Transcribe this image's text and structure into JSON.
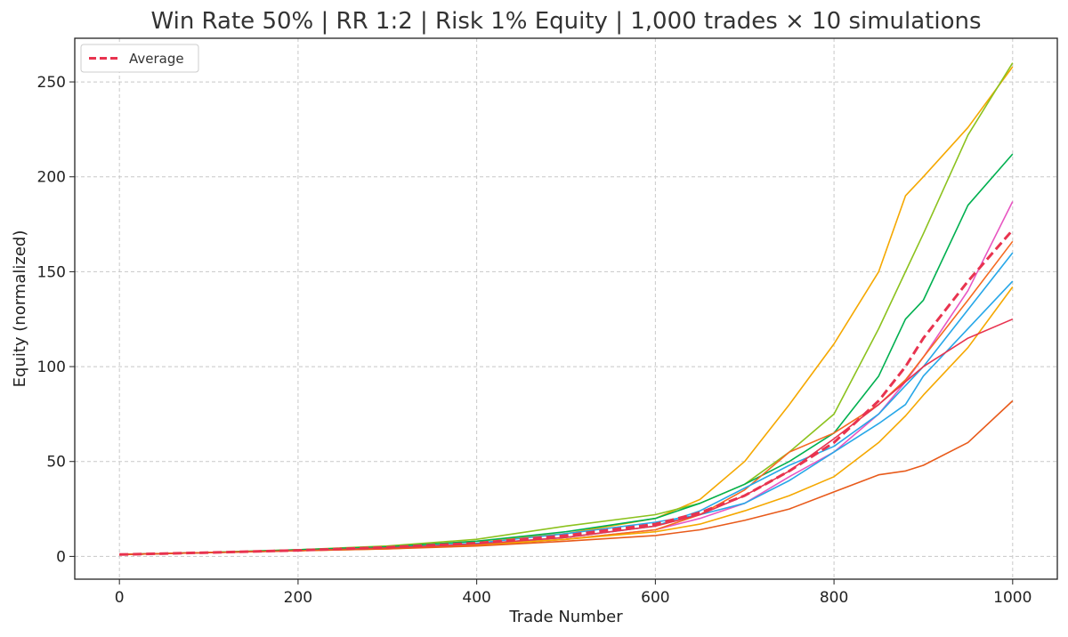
{
  "chart_data": {
    "type": "line",
    "title": "Win Rate 50% | RR 1:2 | Risk 1% Equity | 1,000 trades × 10 simulations",
    "xlabel": "Trade Number",
    "ylabel": "Equity (normalized)",
    "xlim": [
      -50,
      1050
    ],
    "ylim": [
      -12,
      273
    ],
    "xticks": [
      0,
      200,
      400,
      600,
      800,
      1000
    ],
    "yticks": [
      0,
      50,
      100,
      150,
      200,
      250
    ],
    "grid": true,
    "legend_position": "top-left",
    "legend": [
      {
        "label": "Average",
        "color": "#e8334f",
        "style": "dashed"
      }
    ],
    "series": [
      {
        "color": "#f5a800",
        "x": [
          0,
          100,
          200,
          300,
          400,
          500,
          600,
          650,
          700,
          750,
          800,
          850,
          880,
          900,
          950,
          1000
        ],
        "y": [
          1,
          2,
          3.5,
          5,
          8,
          12,
          20,
          30,
          50,
          80,
          112,
          150,
          190,
          200,
          226,
          258
        ]
      },
      {
        "color": "#8cc21e",
        "x": [
          0,
          100,
          200,
          300,
          400,
          500,
          600,
          650,
          700,
          750,
          800,
          850,
          880,
          900,
          950,
          1000
        ],
        "y": [
          1,
          2,
          3.5,
          5.5,
          9,
          16,
          22,
          28,
          38,
          55,
          75,
          120,
          150,
          170,
          222,
          260
        ]
      },
      {
        "color": "#00b050",
        "x": [
          0,
          100,
          200,
          300,
          400,
          500,
          600,
          650,
          700,
          750,
          800,
          850,
          880,
          900,
          950,
          1000
        ],
        "y": [
          1,
          2,
          3.5,
          5,
          8,
          13,
          20,
          28,
          38,
          50,
          65,
          95,
          125,
          135,
          185,
          212
        ]
      },
      {
        "color": "#e856c2",
        "x": [
          0,
          100,
          200,
          300,
          400,
          500,
          600,
          650,
          700,
          750,
          800,
          850,
          880,
          900,
          950,
          1000
        ],
        "y": [
          1,
          2,
          3,
          4.5,
          6,
          9,
          14,
          20,
          28,
          42,
          55,
          75,
          92,
          105,
          140,
          187
        ]
      },
      {
        "color": "#f56a20",
        "x": [
          0,
          100,
          200,
          300,
          400,
          500,
          600,
          650,
          700,
          750,
          800,
          850,
          880,
          900,
          950,
          1000
        ],
        "y": [
          1,
          2,
          3,
          4.5,
          6,
          9,
          14,
          22,
          35,
          55,
          65,
          80,
          93,
          105,
          135,
          166
        ]
      },
      {
        "color": "#27a7e8",
        "x": [
          0,
          100,
          200,
          300,
          400,
          500,
          600,
          650,
          700,
          750,
          800,
          850,
          880,
          900,
          950,
          1000
        ],
        "y": [
          1,
          2,
          3,
          4.5,
          6.5,
          10,
          16,
          24,
          36,
          48,
          58,
          75,
          90,
          100,
          130,
          160
        ]
      },
      {
        "color": "#27a7e8",
        "x": [
          0,
          100,
          200,
          300,
          400,
          500,
          600,
          650,
          700,
          750,
          800,
          850,
          880,
          900,
          950,
          1000
        ],
        "y": [
          1,
          2,
          3,
          4.5,
          7,
          12,
          18,
          22,
          28,
          40,
          55,
          70,
          80,
          95,
          120,
          145
        ]
      },
      {
        "color": "#f5a800",
        "x": [
          0,
          100,
          200,
          300,
          400,
          500,
          600,
          650,
          700,
          750,
          800,
          850,
          880,
          900,
          950,
          1000
        ],
        "y": [
          1,
          2,
          3,
          4,
          6,
          9,
          13,
          17,
          24,
          32,
          42,
          60,
          74,
          85,
          110,
          142
        ]
      },
      {
        "color": "#e8334f",
        "x": [
          0,
          100,
          200,
          300,
          400,
          500,
          600,
          650,
          700,
          750,
          800,
          850,
          880,
          900,
          950,
          1000
        ],
        "y": [
          1,
          2,
          3,
          4.5,
          6.5,
          10,
          16,
          22,
          32,
          45,
          62,
          80,
          92,
          100,
          115,
          125
        ]
      },
      {
        "color": "#e85a1a",
        "x": [
          0,
          100,
          200,
          300,
          400,
          500,
          600,
          650,
          700,
          750,
          800,
          850,
          880,
          900,
          950,
          1000
        ],
        "y": [
          1,
          2,
          3,
          4,
          5.5,
          8,
          11,
          14,
          19,
          25,
          34,
          43,
          45,
          48,
          60,
          82
        ]
      },
      {
        "color": "#e8334f",
        "average": true,
        "x": [
          0,
          100,
          200,
          300,
          400,
          500,
          600,
          650,
          700,
          750,
          800,
          850,
          880,
          900,
          950,
          1000
        ],
        "y": [
          1,
          2,
          3.2,
          4.8,
          7,
          11,
          17,
          23,
          32,
          45,
          60,
          82,
          100,
          115,
          145,
          172
        ]
      }
    ]
  }
}
